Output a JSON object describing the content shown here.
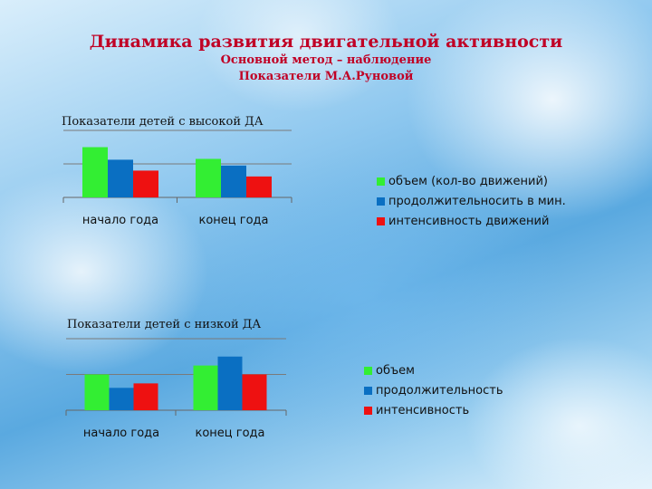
{
  "slide": {
    "title": "Динамика развития двигательной активности",
    "subtitle1": "Основной метод – наблюдение",
    "subtitle2": "Показатели М.А.Руновой"
  },
  "colors": {
    "green": "#33ee33",
    "blue": "#0a6fc2",
    "red": "#ee1111",
    "title": "#c00025"
  },
  "chart_data": [
    {
      "type": "bar",
      "title": "Показатели детей с высокой  ДА",
      "categories": [
        "начало года",
        "конец года"
      ],
      "series": [
        {
          "name": "объем (кол-во движений)",
          "color": "#33ee33",
          "values": [
            3.0,
            2.3
          ]
        },
        {
          "name": "продолжительносить в мин.",
          "color": "#0a6fc2",
          "values": [
            2.25,
            1.9
          ]
        },
        {
          "name": "интенсивность движений",
          "color": "#ee1111",
          "values": [
            1.6,
            1.25
          ]
        }
      ],
      "ylim": [
        0,
        4
      ],
      "grid": true,
      "legend": "right"
    },
    {
      "type": "bar",
      "title": "Показатели детей с низкой ДА",
      "categories": [
        "начало года",
        "конец года"
      ],
      "series": [
        {
          "name": "объем",
          "color": "#33ee33",
          "values": [
            2.0,
            2.5
          ]
        },
        {
          "name": "продолжительность",
          "color": "#0a6fc2",
          "values": [
            1.25,
            3.0
          ]
        },
        {
          "name": "интенсивность",
          "color": "#ee1111",
          "values": [
            1.5,
            2.0
          ]
        }
      ],
      "ylim": [
        0,
        4
      ],
      "grid": true,
      "legend": "right"
    }
  ]
}
